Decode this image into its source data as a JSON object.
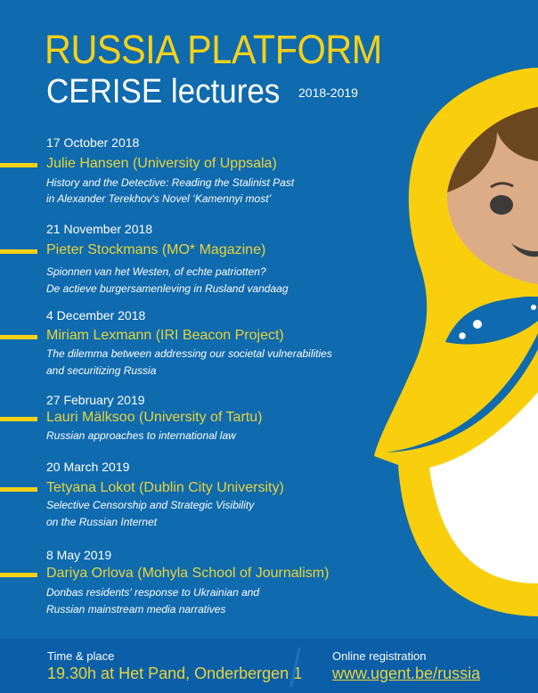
{
  "header": {
    "title_line1": "RUSSIA PLATFORM",
    "title_line2": "CERISE lectures",
    "years": "2018-2019"
  },
  "lectures": [
    {
      "date": "17 October 2018",
      "speaker": "Julie Hansen (University of Uppsala)",
      "desc": [
        "History and the Detective: Reading the Stalinist Past",
        "in Alexander Terekhov's Novel ‘Kamennyi most’"
      ]
    },
    {
      "date": "21 November 2018",
      "speaker": "Pieter Stockmans (MO* Magazine)",
      "desc": [
        "Spionnen van het Westen, of echte patriotten?",
        "De actieve burgersamenleving in Rusland vandaag"
      ]
    },
    {
      "date": "4 December 2018",
      "speaker": "Miriam Lexmann (IRI Beacon Project)",
      "desc": [
        "The dilemma between addressing our societal vulnerabilities",
        "and securitizing Russia"
      ]
    },
    {
      "date": "27 February 2019",
      "speaker": "Lauri Mälksoo (University of Tartu)",
      "desc": [
        "Russian approaches to international law"
      ]
    },
    {
      "date": "20 March 2019",
      "speaker": "Tetyana Lokot (Dublin City University)",
      "desc": [
        "Selective Censorship and Strategic Visibility",
        "on the Russian Internet"
      ]
    },
    {
      "date": "8 May 2019",
      "speaker": "Dariya Orlova (Mohyla School of Journalism)",
      "desc": [
        "Donbas residents' response to Ukrainian and",
        "Russian mainstream media narratives"
      ]
    }
  ],
  "footer": {
    "time_label": "Time & place",
    "time_value": "19.30h at Het Pand, Onderbergen 1",
    "reg_label": "Online registration",
    "reg_link": "www.ugent.be/russia"
  },
  "colors": {
    "background": "#0f6aae",
    "accent": "#f7d117",
    "speaker": "#e8d43a"
  }
}
